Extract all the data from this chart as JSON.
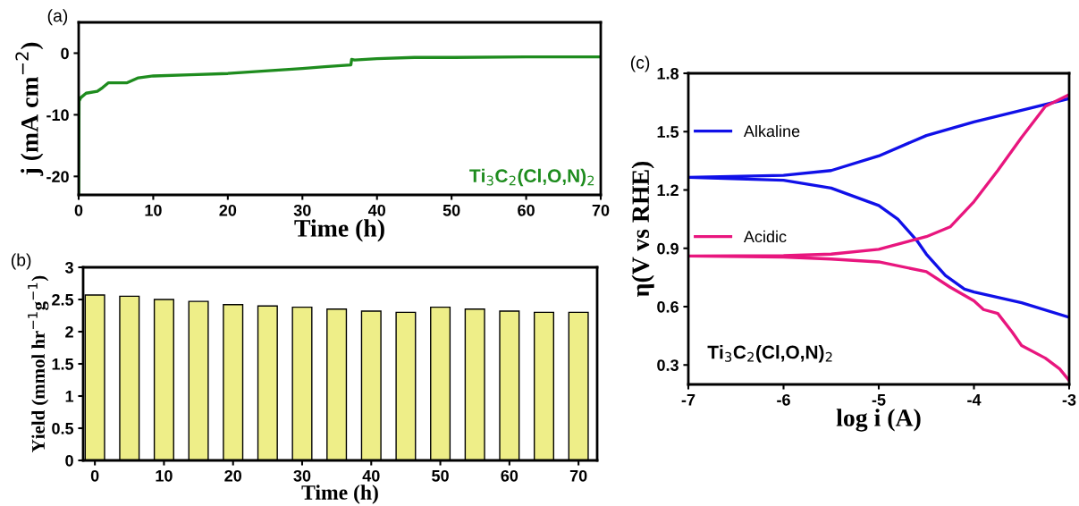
{
  "chart_data": [
    {
      "type": "line",
      "xlabel": "Time (h)",
      "ylabel": "j (mA cm$^{−2}$)",
      "xlim": [
        0,
        70
      ],
      "ylim": [
        -23,
        5
      ],
      "xticks": [
        0,
        10,
        20,
        30,
        40,
        50,
        60,
        70
      ],
      "yticks": [
        {
          "value": -20,
          "label": "-20"
        },
        {
          "value": -10,
          "label": "-10"
        },
        0
      ],
      "grid": false,
      "legend": false,
      "annotations": [
        "(a)"
      ],
      "series": [
        {
          "name": "Ti$_{3}$C$_{2}$(Cl,O,N)$_{2}$",
          "color": "#1e8c1e",
          "x": [
            0,
            0.05,
            0.3,
            1,
            2.5,
            3.2,
            4,
            6.5,
            8,
            10,
            15,
            20,
            25,
            30,
            33,
            36.5,
            36.6,
            37,
            40,
            45,
            50,
            60,
            70
          ],
          "values": [
            -23,
            -7.8,
            -7.2,
            -6.5,
            -6.2,
            -5.6,
            -4.8,
            -4.8,
            -4.0,
            -3.7,
            -3.5,
            -3.3,
            -2.9,
            -2.5,
            -2.2,
            -1.9,
            -1.0,
            -1.1,
            -0.9,
            -0.7,
            -0.7,
            -0.6,
            -0.6
          ]
        }
      ]
    },
    {
      "type": "bar",
      "xlabel": "Time (h)",
      "ylabel": "Yield (mmol hr$^{−1}$g$^{−1}$)",
      "x": [
        0,
        5,
        10,
        15,
        20,
        25,
        30,
        35,
        40,
        45,
        50,
        55,
        60,
        65,
        70
      ],
      "xlim": [
        -1.7,
        72.7
      ],
      "ylim": [
        0,
        3
      ],
      "xticks": [
        0,
        10,
        20,
        30,
        40,
        50,
        60,
        70
      ],
      "yticks": [
        0,
        0.5,
        1,
        1.5,
        2,
        2.5,
        3
      ],
      "grid": false,
      "legend": false,
      "annotations": [
        "(b)"
      ],
      "series": [
        {
          "color": "#eeee88",
          "values": [
            2.57,
            2.55,
            2.5,
            2.47,
            2.42,
            2.4,
            2.38,
            2.35,
            2.32,
            2.3,
            2.38,
            2.35,
            2.32,
            2.3,
            2.3
          ]
        }
      ]
    },
    {
      "type": "line",
      "xlabel": "log i (A)",
      "ylabel": "η(V vs RHE)",
      "xlim": [
        -7,
        -3
      ],
      "ylim": [
        0.2,
        1.8
      ],
      "xticks": [
        {
          "value": -7,
          "label": "-7"
        },
        {
          "value": -6,
          "label": "-6"
        },
        {
          "value": -5,
          "label": "-5"
        },
        {
          "value": -4,
          "label": "-4"
        },
        {
          "value": -3,
          "label": "-3"
        }
      ],
      "yticks": [
        0.3,
        0.6,
        0.9,
        1.2,
        1.5,
        1.8
      ],
      "grid": false,
      "legend": "left",
      "annotations": [
        "(c)",
        "Ti$_{3}$C$_{2}$(Cl,O,N)$_{2}$"
      ],
      "series": [
        {
          "name": "Alkaline",
          "color": "#1010e8",
          "x": [
            -3,
            -3.5,
            -4,
            -4.1,
            -4.3,
            -4.5,
            -4.6,
            -4.8,
            -5,
            -5.5,
            -6,
            -7,
            -6,
            -5.5,
            -5,
            -4.5,
            -4,
            -3.5,
            -3
          ],
          "values": [
            0.545,
            0.62,
            0.675,
            0.69,
            0.76,
            0.87,
            0.94,
            1.05,
            1.12,
            1.21,
            1.25,
            1.265,
            1.275,
            1.3,
            1.375,
            1.48,
            1.55,
            1.61,
            1.67
          ]
        },
        {
          "name": "Acidic",
          "color": "#e8167e",
          "x": [
            -3,
            -3.1,
            -3.25,
            -3.5,
            -3.6,
            -3.75,
            -3.9,
            -4,
            -4.25,
            -4.5,
            -5,
            -5.5,
            -6,
            -7,
            -6,
            -5.5,
            -5,
            -4.5,
            -4.25,
            -4,
            -3.75,
            -3.5,
            -3.25,
            -3
          ],
          "values": [
            0.22,
            0.28,
            0.335,
            0.4,
            0.47,
            0.565,
            0.585,
            0.63,
            0.7,
            0.78,
            0.83,
            0.845,
            0.855,
            0.86,
            0.862,
            0.87,
            0.895,
            0.96,
            1.01,
            1.14,
            1.3,
            1.47,
            1.63,
            1.69
          ]
        }
      ]
    }
  ]
}
